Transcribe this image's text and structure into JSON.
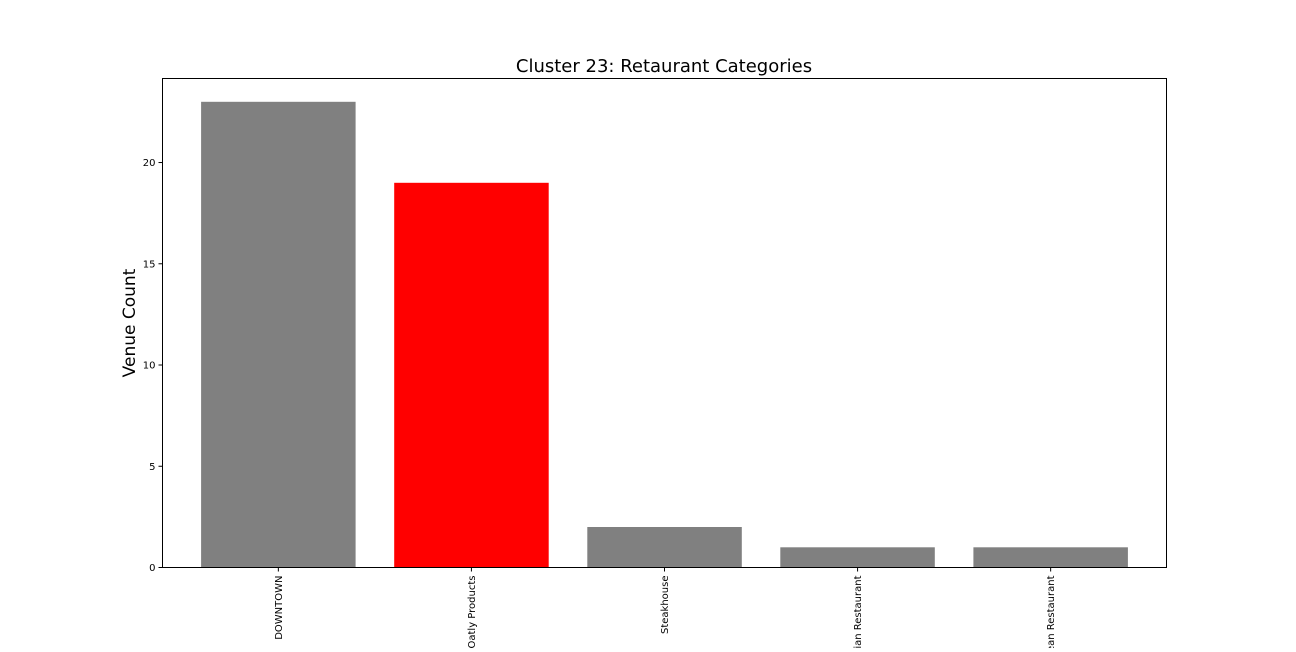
{
  "chart_data": {
    "type": "bar",
    "title": "Cluster 23: Retaurant Categories",
    "xlabel": "",
    "ylabel": "Venue Count",
    "categories": [
      "DOWNTOWN",
      "Oatly Products",
      "Steakhouse",
      "ian Restaurant",
      "ean Restaurant"
    ],
    "values": [
      23,
      19,
      2,
      1,
      1
    ],
    "colors": [
      "#808080",
      "#ff0000",
      "#808080",
      "#808080",
      "#808080"
    ],
    "ylim": [
      0,
      24.15
    ],
    "yticks": [
      0,
      5,
      10,
      15,
      20
    ],
    "grid": false,
    "legend": "none"
  }
}
